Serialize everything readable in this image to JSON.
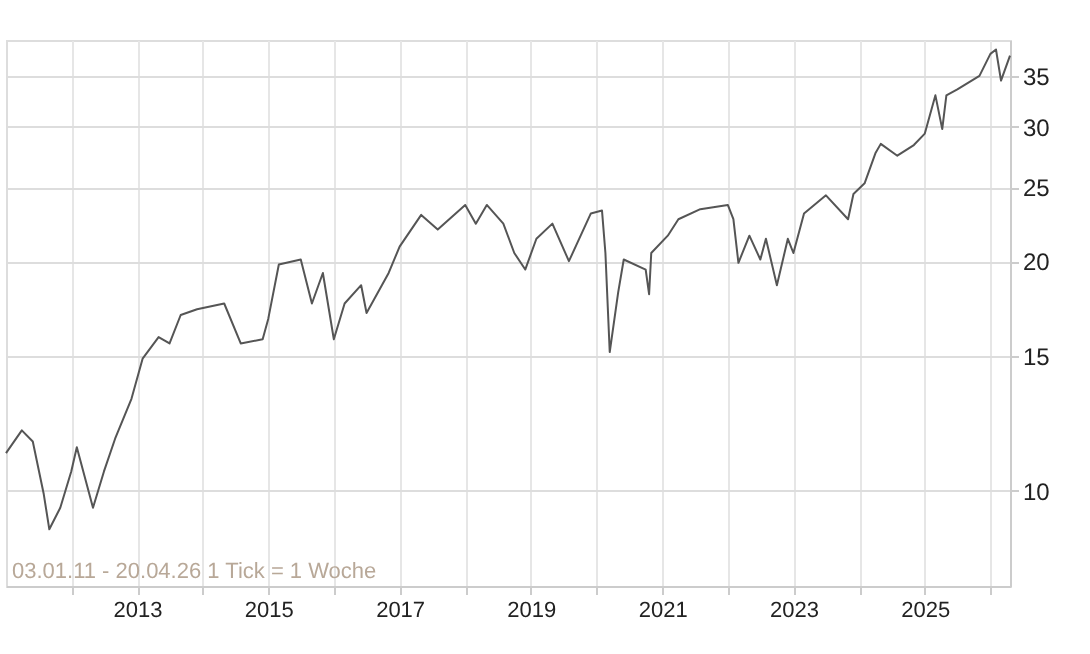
{
  "chart_data": {
    "type": "line",
    "log": "y",
    "grid": true,
    "marker": "none",
    "line_style": "solid",
    "x": [
      "2011-01-03",
      "2011-04",
      "2011-06",
      "2011-08",
      "2011-09",
      "2011-11",
      "2012-01",
      "2012-02",
      "2012-05",
      "2012-07",
      "2012-09",
      "2012-12",
      "2013-02",
      "2013-05",
      "2013-07",
      "2013-09",
      "2013-12",
      "2014-05",
      "2014-08",
      "2014-12",
      "2015-01",
      "2015-03",
      "2015-07",
      "2015-09",
      "2015-11",
      "2016-01",
      "2016-03",
      "2016-06",
      "2016-07",
      "2016-11",
      "2017-01",
      "2017-05",
      "2017-08",
      "2018-01",
      "2018-03",
      "2018-05",
      "2018-08",
      "2018-10",
      "2018-12",
      "2019-02",
      "2019-05",
      "2019-08",
      "2019-12",
      "2020-02",
      "2020-02-20",
      "2020-03-15",
      "2020-05",
      "2020-06",
      "2020-10",
      "2020-10-20",
      "2020-11",
      "2021-02",
      "2021-04",
      "2021-08",
      "2022-01",
      "2022-02",
      "2022-03",
      "2022-05",
      "2022-07",
      "2022-08",
      "2022-10",
      "2022-12",
      "2023-01",
      "2023-03",
      "2023-07",
      "2023-11",
      "2023-12",
      "2024-02",
      "2024-04",
      "2024-05",
      "2024-08",
      "2024-11",
      "2025-01",
      "2025-03",
      "2025-04-08",
      "2025-05",
      "2025-07",
      "2025-11",
      "2026-01",
      "2026-02",
      "2026-03",
      "2026-04-20"
    ],
    "series": [
      {
        "color": "#555555",
        "values": [
          11.2,
          12.0,
          11.6,
          9.9,
          8.9,
          9.5,
          10.6,
          11.4,
          9.5,
          10.6,
          11.7,
          13.2,
          14.9,
          15.9,
          15.6,
          17.0,
          17.3,
          17.6,
          15.6,
          15.8,
          16.8,
          19.8,
          20.1,
          17.6,
          19.3,
          15.8,
          17.6,
          18.6,
          17.1,
          19.3,
          20.9,
          23.0,
          22.0,
          23.7,
          22.4,
          23.7,
          22.4,
          20.5,
          19.5,
          21.4,
          22.4,
          20.0,
          23.1,
          23.3,
          20.5,
          15.2,
          18.2,
          20.1,
          19.5,
          18.1,
          20.5,
          21.6,
          22.7,
          23.4,
          23.7,
          22.7,
          19.9,
          21.6,
          20.1,
          21.4,
          18.6,
          21.4,
          20.5,
          23.1,
          24.4,
          22.7,
          24.5,
          25.3,
          27.7,
          28.5,
          27.5,
          28.4,
          29.4,
          33.0,
          29.8,
          33.0,
          33.6,
          35.0,
          37.4,
          37.9,
          34.5,
          37.2
        ]
      }
    ],
    "xlim": [
      "2011-01-03",
      "2026-04-20"
    ],
    "xticks": [
      {
        "value": "2012",
        "label": null
      },
      "2013",
      {
        "value": "2014",
        "label": null
      },
      "2015",
      {
        "value": "2016",
        "label": null
      },
      "2017",
      {
        "value": "2018",
        "label": null
      },
      "2019",
      {
        "value": "2020",
        "label": null
      },
      "2021",
      {
        "value": "2022",
        "label": null
      },
      "2023",
      {
        "value": "2024",
        "label": null
      },
      "2025",
      {
        "value": "2026",
        "label": null
      }
    ],
    "ylim": [
      7.5,
      39
    ],
    "yticks": [
      10,
      15,
      20,
      25,
      30,
      35
    ],
    "annotations": [
      "03.01.11 - 20.04.26   1 Tick = 1 Woche"
    ]
  }
}
